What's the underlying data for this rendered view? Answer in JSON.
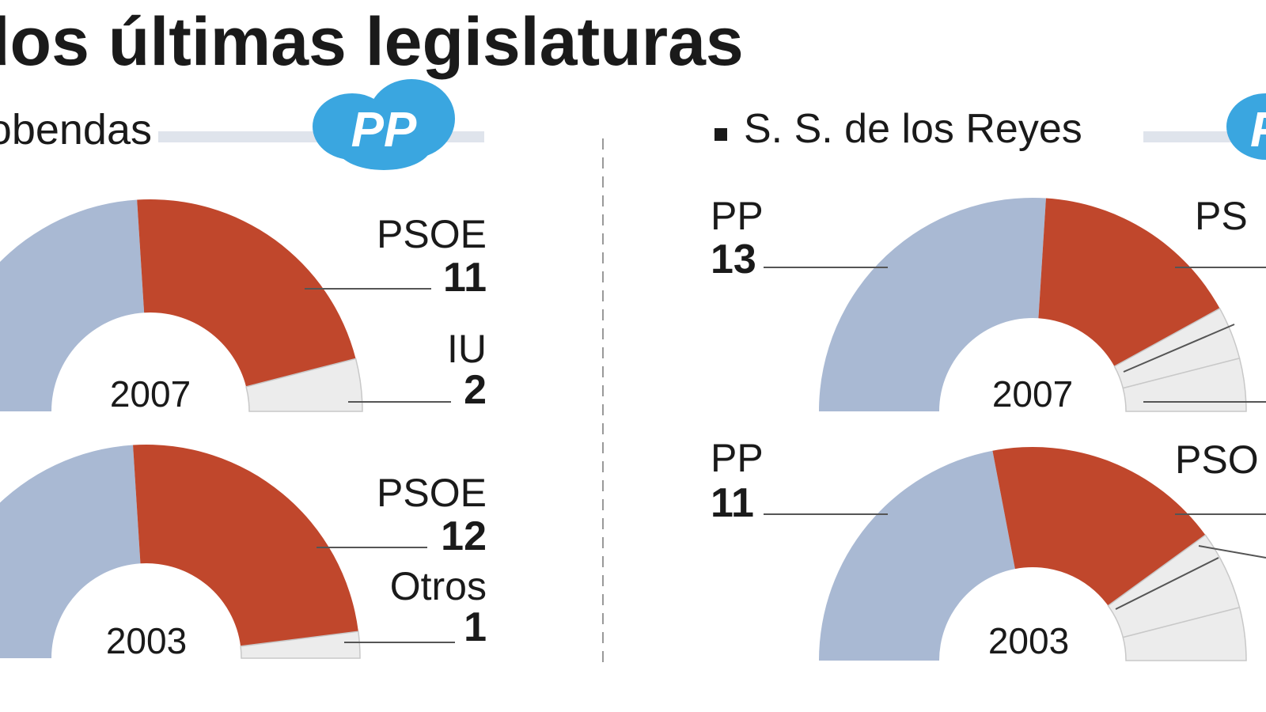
{
  "title": "dos últimas legislaturas",
  "municipalities": [
    {
      "name": "Alcobendas",
      "logo": "PP"
    },
    {
      "name": "S. S. de los Reyes",
      "logo": "PP"
    }
  ],
  "chart_data": [
    {
      "type": "half-donut",
      "year": "2007",
      "categories": [
        null,
        "PSOE",
        "IU"
      ],
      "values": [
        12,
        11,
        2
      ],
      "colors": [
        "#a9b9d3",
        "#c0472c",
        "#ececec"
      ]
    },
    {
      "type": "half-donut",
      "year": "2003",
      "categories": [
        null,
        "PSOE",
        "Otros"
      ],
      "values": [
        12,
        12,
        1
      ],
      "colors": [
        "#a9b9d3",
        "#c0472c",
        "#ececec"
      ]
    },
    {
      "type": "half-donut",
      "year": "2007",
      "categories": [
        "PP",
        "PS",
        null,
        null
      ],
      "values": [
        13,
        8,
        2,
        2
      ],
      "colors": [
        "#a9b9d3",
        "#c0472c",
        "#ececec",
        "#ececec"
      ]
    },
    {
      "type": "half-donut",
      "year": "2003",
      "categories": [
        "PP",
        "PSO",
        null,
        null
      ],
      "values": [
        11,
        9,
        3,
        2
      ],
      "colors": [
        "#a9b9d3",
        "#c0472c",
        "#ececec",
        "#ececec"
      ]
    }
  ]
}
